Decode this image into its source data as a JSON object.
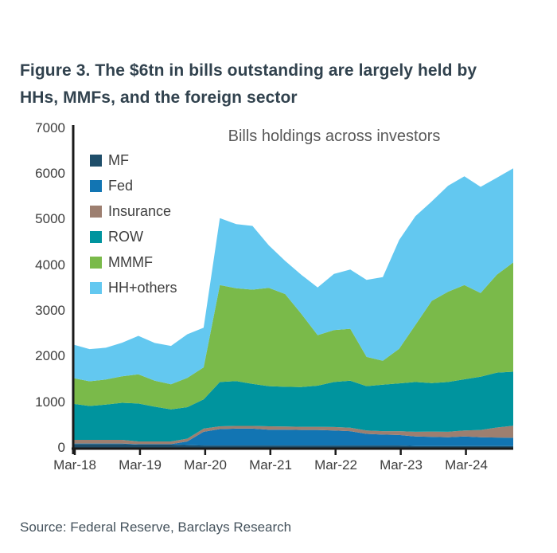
{
  "figure": {
    "title_line1": "Figure 3. The $6tn in bills outstanding are largely held by",
    "title_line2": "HHs, MMFs, and the foreign sector",
    "source": "Source: Federal Reserve, Barclays Research"
  },
  "colors": {
    "axis": "#1a1a1a",
    "tick_text": "#3d3d3d",
    "figure_title_text": "#31424e",
    "chart_title_text": "#595959",
    "source_text": "#44525c",
    "background": "#ffffff"
  },
  "chart_data": {
    "type": "area",
    "stacked": true,
    "title": "Bills holdings across investors",
    "xlabel": "",
    "ylabel": "",
    "ylim": [
      0,
      7000
    ],
    "y_ticks": [
      0,
      1000,
      2000,
      3000,
      4000,
      5000,
      6000,
      7000
    ],
    "grid": false,
    "legend_position": "top-left-vertical",
    "x": [
      "Mar-18",
      "Jun-18",
      "Sep-18",
      "Dec-18",
      "Mar-19",
      "Jun-19",
      "Sep-19",
      "Dec-19",
      "Mar-20",
      "Jun-20",
      "Sep-20",
      "Dec-20",
      "Mar-21",
      "Jun-21",
      "Sep-21",
      "Dec-21",
      "Mar-22",
      "Jun-22",
      "Sep-22",
      "Dec-22",
      "Mar-23",
      "Jun-23",
      "Sep-23",
      "Dec-23",
      "Mar-24",
      "Jun-24",
      "Sep-24",
      "Dec-24"
    ],
    "x_ticks": [
      {
        "label": "Mar-18",
        "index": 0
      },
      {
        "label": "Mar-19",
        "index": 4
      },
      {
        "label": "Mar-20",
        "index": 8
      },
      {
        "label": "Mar-21",
        "index": 12
      },
      {
        "label": "Mar-22",
        "index": 16
      },
      {
        "label": "Mar-23",
        "index": 20
      },
      {
        "label": "Mar-24",
        "index": 24
      }
    ],
    "series": [
      {
        "name": "MF",
        "color": "#1f4e6a",
        "values": [
          80,
          80,
          80,
          80,
          70,
          70,
          70,
          60,
          50,
          50,
          50,
          50,
          50,
          50,
          50,
          50,
          50,
          50,
          50,
          50,
          50,
          40,
          40,
          40,
          40,
          40,
          40,
          40
        ]
      },
      {
        "name": "Fed",
        "color": "#1275b3",
        "values": [
          15,
          15,
          15,
          15,
          10,
          10,
          10,
          80,
          300,
          360,
          370,
          370,
          345,
          345,
          340,
          340,
          330,
          315,
          255,
          240,
          230,
          210,
          200,
          190,
          210,
          190,
          185,
          180
        ]
      },
      {
        "name": "Insurance",
        "color": "#9d7f70",
        "values": [
          80,
          80,
          80,
          80,
          60,
          60,
          60,
          60,
          70,
          60,
          60,
          60,
          75,
          70,
          70,
          70,
          75,
          75,
          75,
          75,
          85,
          100,
          115,
          120,
          130,
          160,
          220,
          265
        ]
      },
      {
        "name": "ROW",
        "color": "#00949e",
        "values": [
          790,
          740,
          770,
          810,
          830,
          760,
          700,
          690,
          640,
          970,
          980,
          920,
          880,
          870,
          870,
          900,
          985,
          1030,
          970,
          1015,
          1045,
          1090,
          1060,
          1090,
          1120,
          1165,
          1200,
          1180
        ]
      },
      {
        "name": "MMMF",
        "color": "#7aba4a",
        "values": [
          560,
          540,
          550,
          580,
          640,
          570,
          550,
          640,
          700,
          2120,
          2030,
          2060,
          2150,
          2030,
          1600,
          1105,
          1135,
          1135,
          640,
          525,
          755,
          1250,
          1800,
          1975,
          2060,
          1830,
          2145,
          2390
        ]
      },
      {
        "name": "HH+others",
        "color": "#63c8f0",
        "values": [
          735,
          705,
          695,
          735,
          840,
          825,
          840,
          955,
          870,
          1465,
          1405,
          1395,
          930,
          725,
          855,
          1045,
          1230,
          1295,
          1685,
          1830,
          2380,
          2380,
          2175,
          2320,
          2380,
          2325,
          2120,
          2060
        ]
      }
    ]
  }
}
